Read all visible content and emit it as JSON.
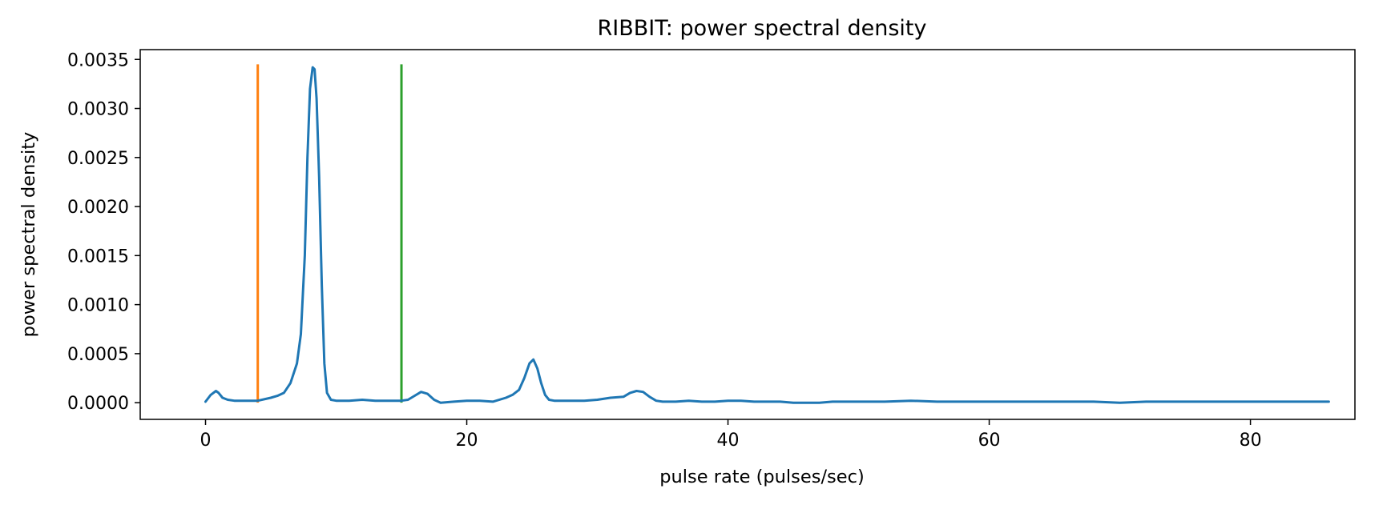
{
  "chart_data": {
    "type": "line",
    "title": "RIBBIT: power spectral density",
    "xlabel": "pulse rate (pulses/sec)",
    "ylabel": "power spectral density",
    "xlim": [
      -5,
      88
    ],
    "ylim": [
      -0.00017,
      0.0036
    ],
    "x_ticks": [
      0,
      20,
      40,
      60,
      80
    ],
    "x_tick_labels": [
      "0",
      "20",
      "40",
      "60",
      "80"
    ],
    "y_ticks": [
      0,
      0.0005,
      0.001,
      0.0015,
      0.002,
      0.0025,
      0.003,
      0.0035
    ],
    "y_tick_labels": [
      "0.0000",
      "0.0005",
      "0.0010",
      "0.0015",
      "0.0020",
      "0.0025",
      "0.0030",
      "0.0035"
    ],
    "grid": false,
    "series": [
      {
        "color": "#1f77b4",
        "x": [
          0,
          0.4,
          0.8,
          1.0,
          1.3,
          1.7,
          2.2,
          3.0,
          4.0,
          5.0,
          5.5,
          6.0,
          6.5,
          7.0,
          7.3,
          7.6,
          7.8,
          8.0,
          8.2,
          8.35,
          8.5,
          8.7,
          8.9,
          9.1,
          9.3,
          9.6,
          10.0,
          11.0,
          12.0,
          13.0,
          14.0,
          15.0,
          15.5,
          16.0,
          16.5,
          17.0,
          17.5,
          18.0,
          19.0,
          20.0,
          21.0,
          22.0,
          23.0,
          23.5,
          24.0,
          24.4,
          24.8,
          25.1,
          25.4,
          25.7,
          26.0,
          26.3,
          26.7,
          27.0,
          28.0,
          29.0,
          30.0,
          31.0,
          32.0,
          32.5,
          33.0,
          33.5,
          34.0,
          34.5,
          35.0,
          36.0,
          37.0,
          38.0,
          39.0,
          40.0,
          41.0,
          42.0,
          43.0,
          44.0,
          45.0,
          46.0,
          47.0,
          48.0,
          49.0,
          50.0,
          52.0,
          54.0,
          56.0,
          58.0,
          60.0,
          62.0,
          64.0,
          66.0,
          68.0,
          70.0,
          72.0,
          74.0,
          76.0,
          78.0,
          80.0,
          82.0,
          84.0,
          86.0
        ],
        "y": [
          1e-05,
          8e-05,
          0.00012,
          0.0001,
          5e-05,
          3e-05,
          2e-05,
          2e-05,
          2e-05,
          5e-05,
          7e-05,
          0.0001,
          0.0002,
          0.0004,
          0.0007,
          0.0015,
          0.0025,
          0.0032,
          0.00342,
          0.0034,
          0.0031,
          0.0023,
          0.0012,
          0.0004,
          0.0001,
          3e-05,
          2e-05,
          2e-05,
          3e-05,
          2e-05,
          2e-05,
          2e-05,
          3e-05,
          7e-05,
          0.00011,
          9e-05,
          3e-05,
          0.0,
          1e-05,
          2e-05,
          2e-05,
          1e-05,
          5e-05,
          8e-05,
          0.00013,
          0.00025,
          0.0004,
          0.00044,
          0.00035,
          0.0002,
          8e-05,
          3e-05,
          2e-05,
          2e-05,
          2e-05,
          2e-05,
          3e-05,
          5e-05,
          6e-05,
          0.0001,
          0.00012,
          0.00011,
          6e-05,
          2e-05,
          1e-05,
          1e-05,
          2e-05,
          1e-05,
          1e-05,
          2e-05,
          2e-05,
          1e-05,
          1e-05,
          1e-05,
          0.0,
          0.0,
          0.0,
          1e-05,
          1e-05,
          1e-05,
          1e-05,
          2e-05,
          1e-05,
          1e-05,
          1e-05,
          1e-05,
          1e-05,
          1e-05,
          1e-05,
          0.0,
          1e-05,
          1e-05,
          1e-05,
          1e-05,
          1e-05,
          1e-05,
          1e-05,
          1e-05
        ]
      }
    ],
    "vertical_lines": [
      {
        "x": 4,
        "y_from": 0,
        "y_to": 0.00345,
        "color": "#ff7f0e"
      },
      {
        "x": 15,
        "y_from": 0,
        "y_to": 0.00345,
        "color": "#2ca02c"
      }
    ]
  }
}
